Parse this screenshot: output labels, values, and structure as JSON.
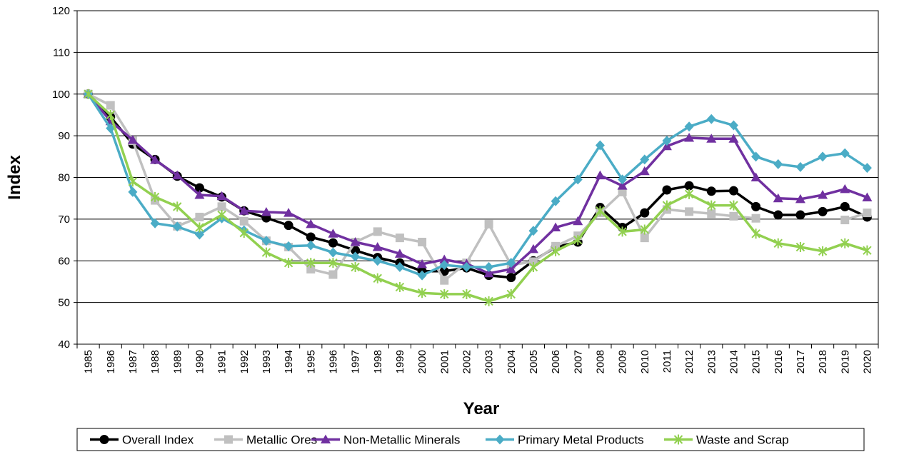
{
  "chart_data": {
    "type": "line",
    "xlabel": "Year",
    "ylabel": "Index",
    "ylim": [
      40,
      120
    ],
    "yticks": [
      40,
      50,
      60,
      70,
      80,
      90,
      100,
      110,
      120
    ],
    "grid": "horizontal",
    "legend_position": "bottom",
    "x": [
      1985,
      1986,
      1987,
      1988,
      1989,
      1990,
      1991,
      1992,
      1993,
      1994,
      1995,
      1996,
      1997,
      1998,
      1999,
      2000,
      2001,
      2002,
      2003,
      2004,
      2005,
      2006,
      2007,
      2008,
      2009,
      2010,
      2011,
      2012,
      2013,
      2014,
      2015,
      2016,
      2017,
      2018,
      2019,
      2020
    ],
    "series": [
      {
        "name": "Overall Index",
        "color": "#000000",
        "marker": "circle",
        "values": [
          100,
          94.5,
          88,
          84.3,
          80.3,
          77.5,
          75.3,
          72,
          70.3,
          68.5,
          65.7,
          64.3,
          62.5,
          60.8,
          59.5,
          57.5,
          57.5,
          58.3,
          56.5,
          56,
          60,
          63.3,
          64.5,
          72.8,
          68,
          71.5,
          77,
          78,
          76.7,
          76.8,
          73,
          71,
          71,
          71.8,
          73,
          70.5
        ]
      },
      {
        "name": "Metallic Ores",
        "color": "#c0c0c0",
        "marker": "square",
        "values": [
          100,
          97.3,
          88.8,
          74.5,
          68.3,
          70.5,
          73,
          69.5,
          64.8,
          63.3,
          58,
          56.7,
          64.5,
          67,
          65.5,
          64.5,
          55.3,
          59.5,
          68.8,
          59,
          59.8,
          63.5,
          66,
          71.5,
          76.5,
          65.5,
          72.3,
          71.8,
          71.3,
          70.7,
          70.2,
          null,
          null,
          null,
          69.8,
          71.5
        ]
      },
      {
        "name": "Non-Metallic Minerals",
        "color": "#7030a0",
        "marker": "triangle",
        "values": [
          100,
          93.5,
          89,
          84.2,
          80.5,
          75.8,
          75.5,
          72,
          71.7,
          71.5,
          68.8,
          66.5,
          64.5,
          63.3,
          61.7,
          59.2,
          60.3,
          59.3,
          57,
          58,
          62.8,
          68,
          69.5,
          80.5,
          78,
          81.5,
          87.5,
          89.5,
          89.3,
          89.3,
          80,
          75,
          74.8,
          75.8,
          77.2,
          75.2
        ]
      },
      {
        "name": "Primary Metal Products",
        "color": "#4bacc6",
        "marker": "diamond",
        "values": [
          100,
          91.8,
          76.5,
          69,
          68.2,
          66.3,
          70.2,
          67.3,
          64.8,
          63.5,
          63.7,
          62,
          61,
          60,
          58.5,
          56.5,
          59,
          58.5,
          58.5,
          59.5,
          67.2,
          74.3,
          79.5,
          87.7,
          79.5,
          84.3,
          88.8,
          92.2,
          94,
          92.5,
          85,
          83.2,
          82.5,
          85,
          85.8,
          82.3
        ]
      },
      {
        "name": "Waste and Scrap",
        "color": "#92d050",
        "marker": "star",
        "values": [
          100,
          95,
          79,
          75.3,
          73,
          68,
          71,
          66.7,
          62,
          59.5,
          59.5,
          59.5,
          58.5,
          55.8,
          53.7,
          52.3,
          52,
          52,
          50.3,
          52,
          58.5,
          62.3,
          65,
          72,
          67,
          67.5,
          73.3,
          76,
          73.3,
          73.3,
          66.5,
          64.2,
          63.3,
          62.3,
          64.2,
          62.5
        ]
      }
    ]
  }
}
